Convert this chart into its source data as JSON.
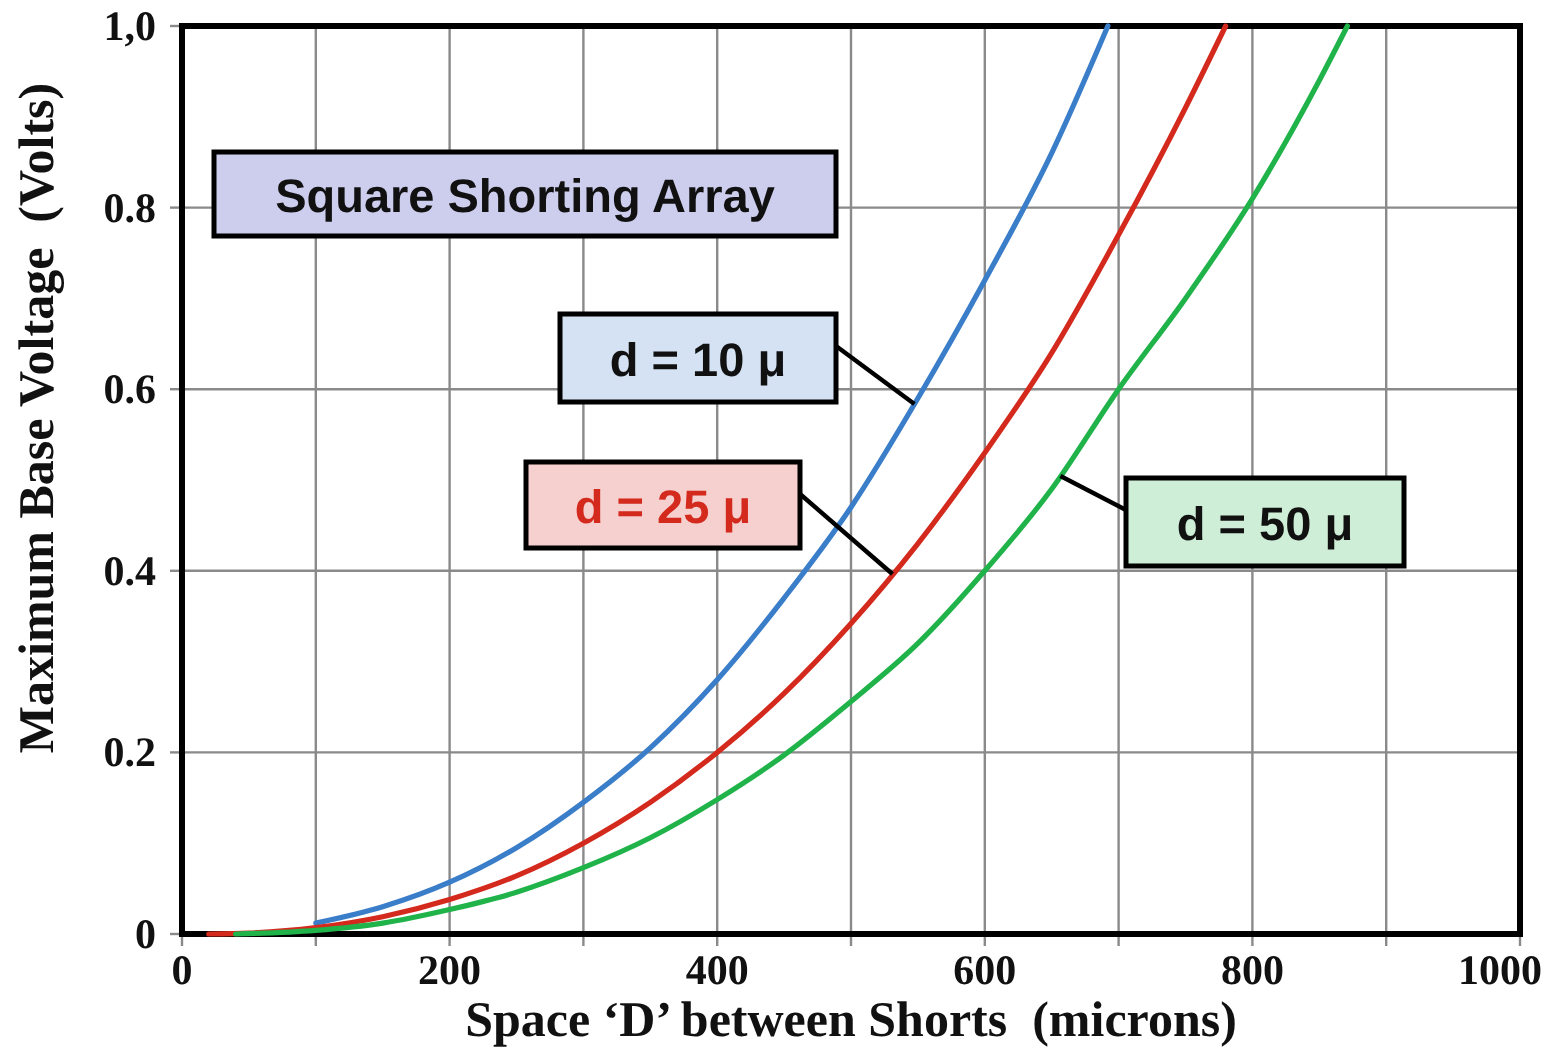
{
  "chart_data": {
    "type": "line",
    "title": "Square Shorting Array",
    "xlabel": "Space ‘D’ between Shorts  (microns)",
    "ylabel": "Maximum Base Voltage  (Volts)",
    "xlim": [
      0,
      1000
    ],
    "ylim": [
      0,
      1
    ],
    "xticks": [
      0,
      {
        "value": 100,
        "label": null
      },
      200,
      {
        "value": 300,
        "label": null
      },
      400,
      {
        "value": 500,
        "label": null
      },
      600,
      {
        "value": 700,
        "label": null
      },
      800,
      {
        "value": 900,
        "label": null
      },
      1000
    ],
    "yticks": [
      0,
      0.2,
      0.4,
      0.6,
      0.8,
      {
        "value": 1,
        "label": "1,0"
      }
    ],
    "grid": true,
    "series": [
      {
        "name": "d = 10 μ",
        "color": "#3a7dc9",
        "x": [
          100,
          150,
          200,
          250,
          300,
          350,
          400,
          450,
          500,
          550,
          600,
          650,
          692
        ],
        "values": [
          0.012,
          0.03,
          0.057,
          0.095,
          0.145,
          0.205,
          0.28,
          0.37,
          0.47,
          0.59,
          0.72,
          0.86,
          1.0
        ]
      },
      {
        "name": "d = 25 μ",
        "color": "#d42a1e",
        "x": [
          20,
          50,
          100,
          150,
          200,
          250,
          300,
          350,
          400,
          450,
          500,
          550,
          600,
          650,
          700,
          750,
          780
        ],
        "values": [
          0,
          0.001,
          0.007,
          0.019,
          0.038,
          0.064,
          0.1,
          0.145,
          0.2,
          0.265,
          0.342,
          0.43,
          0.53,
          0.64,
          0.77,
          0.91,
          1.0
        ]
      },
      {
        "name": "d = 50 μ",
        "color": "#1fb34a",
        "x": [
          40,
          100,
          150,
          200,
          250,
          300,
          350,
          400,
          450,
          500,
          550,
          600,
          650,
          700,
          750,
          800,
          850,
          871
        ],
        "values": [
          0,
          0.004,
          0.012,
          0.027,
          0.046,
          0.073,
          0.106,
          0.148,
          0.197,
          0.256,
          0.32,
          0.4,
          0.49,
          0.6,
          0.7,
          0.81,
          0.94,
          1.0
        ]
      }
    ]
  }
}
